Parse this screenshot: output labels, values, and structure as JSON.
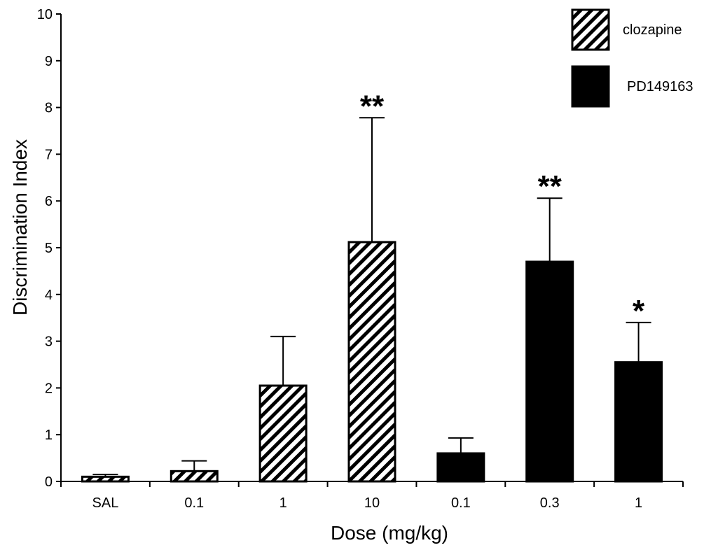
{
  "chart_data": {
    "type": "bar",
    "xlabel": "Dose (mg/kg)",
    "ylabel": "Discrimination Index",
    "ylim": [
      0,
      10
    ],
    "yticks": [
      0,
      1,
      2,
      3,
      4,
      5,
      6,
      7,
      8,
      9,
      10
    ],
    "categories": [
      "SAL",
      "0.1",
      "1",
      "10",
      "0.1",
      "0.3",
      "1"
    ],
    "series": [
      {
        "name": "clozapine",
        "fill": "hatched",
        "color": "#000000",
        "points": [
          {
            "category_index": 0,
            "value": 0.1,
            "error": 0.05,
            "significance": ""
          },
          {
            "category_index": 1,
            "value": 0.22,
            "error": 0.22,
            "significance": ""
          },
          {
            "category_index": 2,
            "value": 2.05,
            "error": 1.05,
            "significance": ""
          },
          {
            "category_index": 3,
            "value": 5.12,
            "error": 2.66,
            "significance": "**"
          }
        ]
      },
      {
        "name": "PD149163",
        "fill": "solid",
        "color": "#000000",
        "points": [
          {
            "category_index": 4,
            "value": 0.6,
            "error": 0.33,
            "significance": ""
          },
          {
            "category_index": 5,
            "value": 4.7,
            "error": 1.36,
            "significance": "**"
          },
          {
            "category_index": 6,
            "value": 2.55,
            "error": 0.85,
            "significance": "*"
          }
        ]
      }
    ],
    "legend_position": "top-right",
    "grid": false
  }
}
